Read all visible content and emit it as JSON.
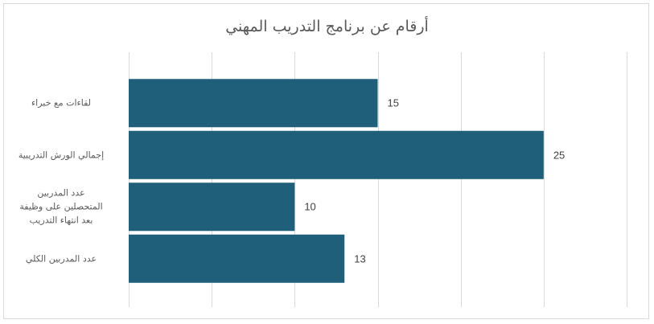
{
  "chart_data": {
    "type": "bar",
    "orientation": "horizontal",
    "title": "أرقام عن برنامج التدريب المهني",
    "categories": [
      "لقاءات مع خبراء",
      "إجمالي الورش التدريبية",
      "عدد المدربين المتحصلين على وظيفة بعد انتهاء التدريب",
      "عدد المدربين الكلي"
    ],
    "category_lines": [
      [
        "لقاءات مع خبراء"
      ],
      [
        "إجمالي الورش التدريبية"
      ],
      [
        "عدد المدربين",
        "المتحصلين على وظيفة",
        "بعد انتهاء التدريب"
      ],
      [
        "عدد المدربين الكلي"
      ]
    ],
    "values": [
      15,
      25,
      10,
      13
    ],
    "xlim": [
      0,
      30
    ],
    "major_unit": 5,
    "grid": true,
    "bar_color": "#1f5f7a",
    "show_data_labels": true,
    "show_axis_tick_labels": false
  }
}
